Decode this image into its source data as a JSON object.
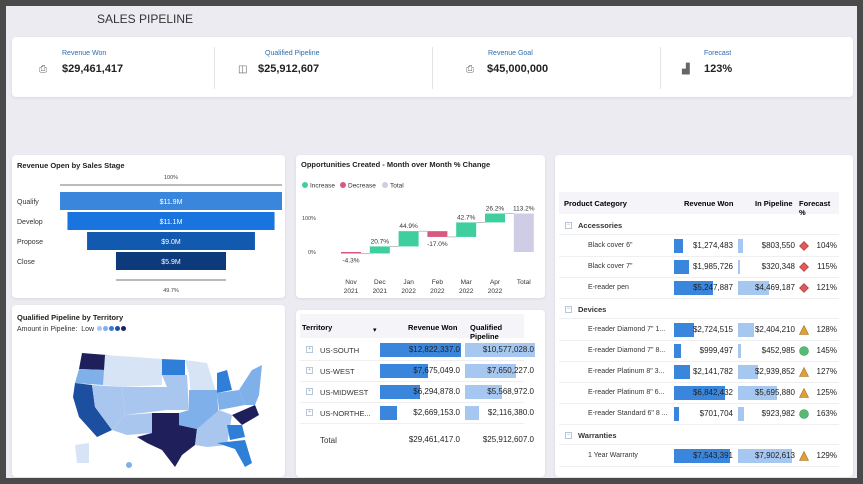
{
  "header": {
    "title": "SALES PIPELINE"
  },
  "kpis": [
    {
      "label": "Revenue Won",
      "value": "$29,461,417",
      "icon": "revenue-icon"
    },
    {
      "label": "Qualified Pipeline",
      "value": "$25,912,607",
      "icon": "pipeline-icon"
    },
    {
      "label": "Revenue Goal",
      "value": "$45,000,000",
      "icon": "goal-icon"
    },
    {
      "label": "Forecast",
      "value": "123%",
      "icon": "bar-chart-icon"
    }
  ],
  "colors": {
    "accent": "#2b6cb0",
    "increase": "#3fcf9f",
    "decrease": "#d9587f",
    "total": "#cfcde6",
    "bar_dark": "#3b86dd",
    "bar_light": "#a6c8f0"
  },
  "chart_data": [
    {
      "type": "bar",
      "title": "Revenue Open by Sales Stage",
      "subtype": "funnel",
      "categories": [
        "Qualify",
        "Develop",
        "Propose",
        "Close"
      ],
      "values": [
        11.9,
        11.1,
        9.0,
        5.9
      ],
      "labels": [
        "$11.9M",
        "$11.1M",
        "$9.0M",
        "$5.9M"
      ],
      "top_label": "100%",
      "bottom_label": "49.7%",
      "colors": [
        "#3b86dd",
        "#1a74e0",
        "#1259b0",
        "#0d3a7a"
      ]
    },
    {
      "type": "bar",
      "subtype": "waterfall",
      "title": "Opportunities Created - Month over Month % Change",
      "legend": [
        "Increase",
        "Decrease",
        "Total"
      ],
      "legend_position": "top-left",
      "categories": [
        [
          "Nov",
          "2021"
        ],
        [
          "Dec",
          "2021"
        ],
        [
          "Jan",
          "2022"
        ],
        [
          "Feb",
          "2022"
        ],
        [
          "Mar",
          "2022"
        ],
        [
          "Apr",
          "2022"
        ],
        [
          "Total",
          ""
        ]
      ],
      "values": [
        -4.3,
        20.7,
        44.9,
        -17.0,
        42.7,
        26.2,
        113.2
      ],
      "labels": [
        "-4.3%",
        "20.7%",
        "44.9%",
        "-17.0%",
        "42.7%",
        "26.2%",
        "113.2%"
      ],
      "yticks": [
        "100%",
        "0%"
      ]
    }
  ],
  "map": {
    "title": "Qualified Pipeline by Territory",
    "legend_label": "Amount in Pipeline:",
    "legend_low": "Low",
    "scale": [
      "#a9c7ee",
      "#7fb0ea",
      "#2f7fd8",
      "#1c4fa0",
      "#1f1f5c"
    ]
  },
  "territory": {
    "headers": [
      "Territory",
      "Revenue Won",
      "Qualified Pipeline"
    ],
    "rows": [
      {
        "name": "US-SOUTH",
        "won": "$12,822,337.0",
        "pipe": "$10,577,028.0",
        "w": 12822337,
        "p": 10577028
      },
      {
        "name": "US-WEST",
        "won": "$7,675,049.0",
        "pipe": "$7,650,227.0",
        "w": 7675049,
        "p": 7650227
      },
      {
        "name": "US-MIDWEST",
        "won": "$6,294,878.0",
        "pipe": "$5,568,972.0",
        "w": 6294878,
        "p": 5568972
      },
      {
        "name": "US-NORTHE...",
        "won": "$2,669,153.0",
        "pipe": "$2,116,380.0",
        "w": 2669153,
        "p": 2116380
      }
    ],
    "total": {
      "name": "Total",
      "won": "$29,461,417.0",
      "pipe": "$25,912,607.0"
    }
  },
  "products": {
    "headers": [
      "Product Category",
      "Revenue Won",
      "In Pipeline",
      "Forecast %"
    ],
    "groups": [
      {
        "name": "Accessories",
        "items": [
          {
            "name": "Black cover 6\"",
            "won": "$1,274,483",
            "pipe": "$803,550",
            "fc": "104%",
            "status": "diamond",
            "w": 1274483,
            "p": 803550
          },
          {
            "name": "Black cover 7\"",
            "won": "$1,985,726",
            "pipe": "$320,348",
            "fc": "115%",
            "status": "diamond",
            "w": 1985726,
            "p": 320348
          },
          {
            "name": "E-reader pen",
            "won": "$5,247,887",
            "pipe": "$4,469,187",
            "fc": "121%",
            "status": "diamond",
            "w": 5247887,
            "p": 4469187
          }
        ]
      },
      {
        "name": "Devices",
        "items": [
          {
            "name": "E-reader Diamond 7\" 1...",
            "won": "$2,724,515",
            "pipe": "$2,404,210",
            "fc": "128%",
            "status": "triangle",
            "w": 2724515,
            "p": 2404210
          },
          {
            "name": "E-reader Diamond 7\" 8...",
            "won": "$999,497",
            "pipe": "$452,985",
            "fc": "145%",
            "status": "circle",
            "w": 999497,
            "p": 452985
          },
          {
            "name": "E-reader Platinum 8\" 3...",
            "won": "$2,141,782",
            "pipe": "$2,939,852",
            "fc": "127%",
            "status": "triangle",
            "w": 2141782,
            "p": 2939852
          },
          {
            "name": "E-reader Platinum 8\" 6...",
            "won": "$6,842,432",
            "pipe": "$5,695,880",
            "fc": "125%",
            "status": "triangle",
            "w": 6842432,
            "p": 5695880
          },
          {
            "name": "E-reader Standard 6\" 8 ...",
            "won": "$701,704",
            "pipe": "$923,982",
            "fc": "163%",
            "status": "circle",
            "w": 701704,
            "p": 923982
          }
        ]
      },
      {
        "name": "Warranties",
        "items": [
          {
            "name": "1 Year Warranty",
            "won": "$7,543,391",
            "pipe": "$7,902,613",
            "fc": "129%",
            "status": "triangle",
            "w": 7543391,
            "p": 7902613
          }
        ]
      }
    ]
  }
}
